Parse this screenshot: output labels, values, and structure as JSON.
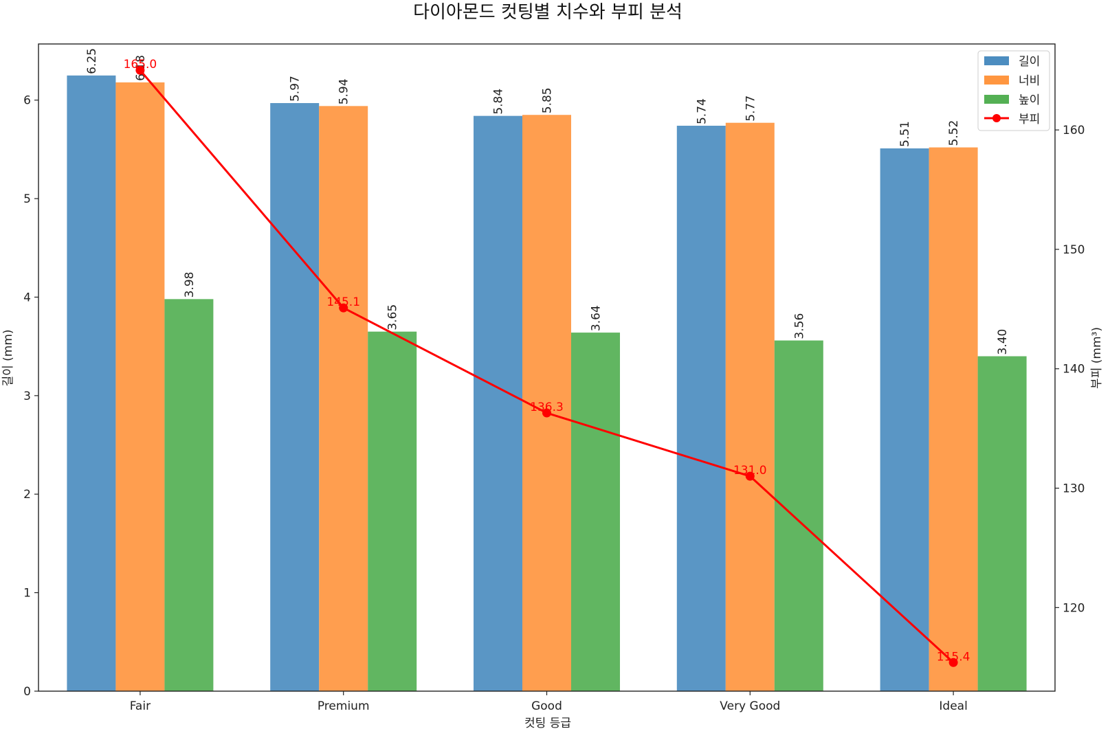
{
  "chart_data": {
    "type": "bar",
    "title": "다이아몬드 컷팅별 치수와 부피 분석",
    "xlabel": "컷팅 등급",
    "ylabel": "길이 (mm)",
    "y2label": "부피 (mm³)",
    "categories": [
      "Fair",
      "Premium",
      "Good",
      "Very Good",
      "Ideal"
    ],
    "ylim": [
      0,
      6.57
    ],
    "y2lim": [
      113.0,
      167.2
    ],
    "yticks": [
      0,
      1,
      2,
      3,
      4,
      5,
      6
    ],
    "y2ticks": [
      120,
      130,
      140,
      150,
      160
    ],
    "grid": false,
    "legend_position": "top-right",
    "series": [
      {
        "name": "길이",
        "color": "#4c8dc0",
        "values": [
          6.25,
          5.97,
          5.84,
          5.74,
          5.51
        ],
        "labels": [
          "6.25",
          "5.97",
          "5.84",
          "5.74",
          "5.51"
        ]
      },
      {
        "name": "너비",
        "color": "#ff9640",
        "values": [
          6.18,
          5.94,
          5.85,
          5.77,
          5.52
        ],
        "labels": [
          "6.18",
          "5.94",
          "5.85",
          "5.77",
          "5.52"
        ]
      },
      {
        "name": "높이",
        "color": "#54b054",
        "values": [
          3.98,
          3.65,
          3.64,
          3.56,
          3.4
        ],
        "labels": [
          "3.98",
          "3.65",
          "3.64",
          "3.56",
          "3.40"
        ]
      }
    ],
    "line_series": {
      "name": "부피",
      "color": "#ff0000",
      "axis": "right",
      "values": [
        165.0,
        145.1,
        136.3,
        131.0,
        115.4
      ],
      "labels": [
        "165.0",
        "145.1",
        "136.3",
        "131.0",
        "115.4"
      ]
    }
  }
}
